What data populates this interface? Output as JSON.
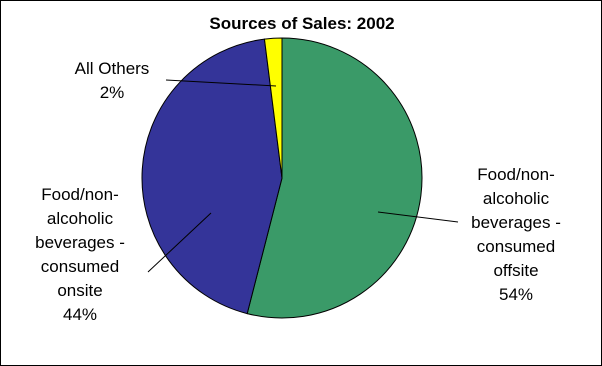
{
  "chart_data": {
    "type": "pie",
    "title": "Sources of Sales: 2002",
    "slices": [
      {
        "name": "Food/non-alcoholic beverages - consumed offsite",
        "label_lines": [
          "Food/non-",
          "alcoholic",
          "beverages -",
          "consumed",
          "offsite"
        ],
        "value": 54,
        "value_label": "54%",
        "color": "#3a9a68"
      },
      {
        "name": "Food/non-alcoholic beverages - consumed onsite",
        "label_lines": [
          "Food/non-",
          "alcoholic",
          "beverages -",
          "consumed",
          "onsite"
        ],
        "value": 44,
        "value_label": "44%",
        "color": "#343499"
      },
      {
        "name": "All Others",
        "label_lines": [
          "All Others"
        ],
        "value": 2,
        "value_label": "2%",
        "color": "#ffff00"
      }
    ],
    "legend": "none"
  }
}
